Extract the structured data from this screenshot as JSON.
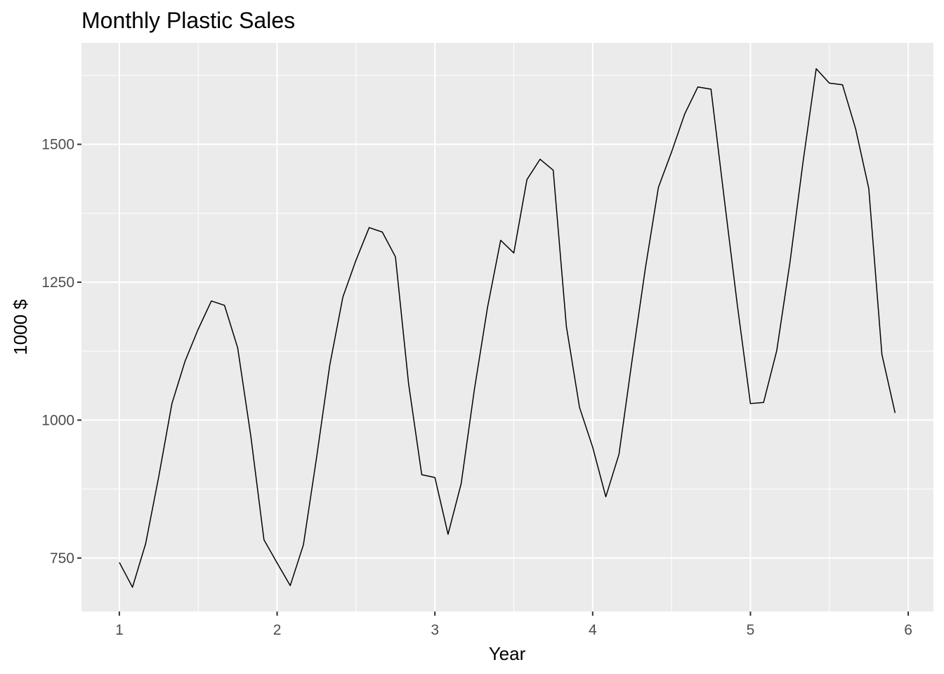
{
  "chart_data": {
    "type": "line",
    "title": "Monthly Plastic Sales",
    "xlabel": "Year",
    "ylabel": "1000 $",
    "xlim": [
      0.76,
      6.16
    ],
    "ylim": [
      653,
      1684
    ],
    "x_ticks": [
      1,
      2,
      3,
      4,
      5,
      6
    ],
    "y_ticks": [
      750,
      1000,
      1250,
      1500
    ],
    "x_tick_labels": [
      "1",
      "2",
      "3",
      "4",
      "5",
      "6"
    ],
    "y_tick_labels": [
      "750",
      "1000",
      "1250",
      "1500"
    ],
    "grid": true,
    "legend": "none",
    "line_color": "#000000",
    "panel_color": "#ebebeb",
    "grid_color": "#ffffff",
    "series": [
      {
        "x": [
          1.0,
          1.0833,
          1.1667,
          1.25,
          1.3333,
          1.4167,
          1.5,
          1.5833,
          1.6667,
          1.75,
          1.8333,
          1.9167,
          2.0,
          2.0833,
          2.1667,
          2.25,
          2.3333,
          2.4167,
          2.5,
          2.5833,
          2.6667,
          2.75,
          2.8333,
          2.9167,
          3.0,
          3.0833,
          3.1667,
          3.25,
          3.3333,
          3.4167,
          3.5,
          3.5833,
          3.6667,
          3.75,
          3.8333,
          3.9167,
          4.0,
          4.0833,
          4.1667,
          4.25,
          4.3333,
          4.4167,
          4.5,
          4.5833,
          4.6667,
          4.75,
          4.8333,
          4.9167,
          5.0,
          5.0833,
          5.1667,
          5.25,
          5.3333,
          5.4167,
          5.5,
          5.5833,
          5.6667,
          5.75,
          5.8333,
          5.9167
        ],
        "values": [
          742,
          697,
          776,
          898,
          1030,
          1107,
          1165,
          1216,
          1208,
          1131,
          971,
          783,
          741,
          700,
          774,
          932,
          1099,
          1223,
          1290,
          1349,
          1341,
          1296,
          1066,
          901,
          896,
          793,
          885,
          1055,
          1204,
          1326,
          1303,
          1436,
          1473,
          1453,
          1170,
          1023,
          951,
          861,
          938,
          1109,
          1274,
          1422,
          1486,
          1555,
          1604,
          1600,
          1403,
          1209,
          1030,
          1032,
          1126,
          1285,
          1468,
          1637,
          1611,
          1608,
          1528,
          1420,
          1119,
          1013
        ]
      }
    ]
  }
}
